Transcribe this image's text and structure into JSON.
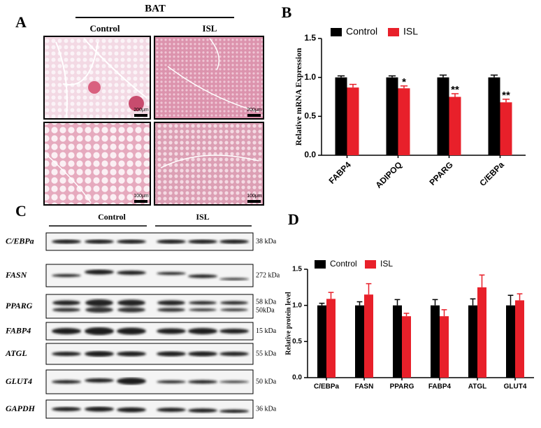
{
  "panel_a": {
    "letter": "A",
    "title": "BAT",
    "columns": [
      "Control",
      "ISL"
    ],
    "scale_bars": [
      "200μm",
      "200μm",
      "100μm",
      "100μm"
    ]
  },
  "panel_c": {
    "letter": "C",
    "groups": [
      "Control",
      "ISL"
    ],
    "rows": [
      {
        "protein": "C/EBPa",
        "sizes": [
          "38 kDa"
        ]
      },
      {
        "protein": "FASN",
        "sizes": [
          "272 kDa"
        ]
      },
      {
        "protein": "PPARG",
        "sizes": [
          "58 kDa",
          "50kDa"
        ]
      },
      {
        "protein": "FABP4",
        "sizes": [
          "15 kDa"
        ]
      },
      {
        "protein": "ATGL",
        "sizes": [
          "55 kDa"
        ]
      },
      {
        "protein": "GLUT4",
        "sizes": [
          "50 kDa"
        ]
      },
      {
        "protein": "GAPDH",
        "sizes": [
          "36 kDa"
        ]
      }
    ]
  },
  "chart_data": [
    {
      "type": "bar",
      "panel_label": "B",
      "ylabel": "Relative mRNA Expression",
      "categories": [
        "FABP4",
        "ADIPOQ",
        "PPARG",
        "C/EBPa"
      ],
      "series": [
        {
          "name": "Control",
          "color": "#000000",
          "values": [
            1.0,
            1.0,
            1.0,
            1.0
          ],
          "errors": [
            0.02,
            0.02,
            0.03,
            0.03
          ]
        },
        {
          "name": "ISL",
          "color": "#e8202a",
          "values": [
            0.87,
            0.86,
            0.75,
            0.68
          ],
          "errors": [
            0.04,
            0.03,
            0.04,
            0.04
          ],
          "annotations": [
            null,
            "*",
            "**",
            "**"
          ]
        }
      ],
      "ylim": [
        0,
        1.5
      ],
      "yticks": [
        {
          "value": 0,
          "label": "0.0"
        },
        0.5,
        {
          "value": 1,
          "label": "1.0"
        },
        1.5
      ],
      "grid": false,
      "legend": "top"
    },
    {
      "type": "bar",
      "panel_label": "D",
      "ylabel": "Relative protein level",
      "categories": [
        "C/EBPa",
        "FASN",
        "PPARG",
        "FABP4",
        "ATGL",
        "GLUT4"
      ],
      "series": [
        {
          "name": "Control",
          "color": "#000000",
          "values": [
            1.0,
            1.0,
            1.0,
            1.0,
            1.0,
            1.0
          ],
          "errors": [
            0.03,
            0.05,
            0.08,
            0.08,
            0.09,
            0.14
          ]
        },
        {
          "name": "ISL",
          "color": "#e8202a",
          "values": [
            1.09,
            1.15,
            0.85,
            0.85,
            1.25,
            1.07
          ],
          "errors": [
            0.09,
            0.15,
            0.04,
            0.09,
            0.17,
            0.09
          ]
        }
      ],
      "ylim": [
        0,
        1.5
      ],
      "yticks": [
        {
          "value": 0,
          "label": "0.0"
        },
        0.5,
        {
          "value": 1,
          "label": "1.0"
        },
        1.5
      ],
      "grid": false,
      "legend": "top"
    }
  ]
}
